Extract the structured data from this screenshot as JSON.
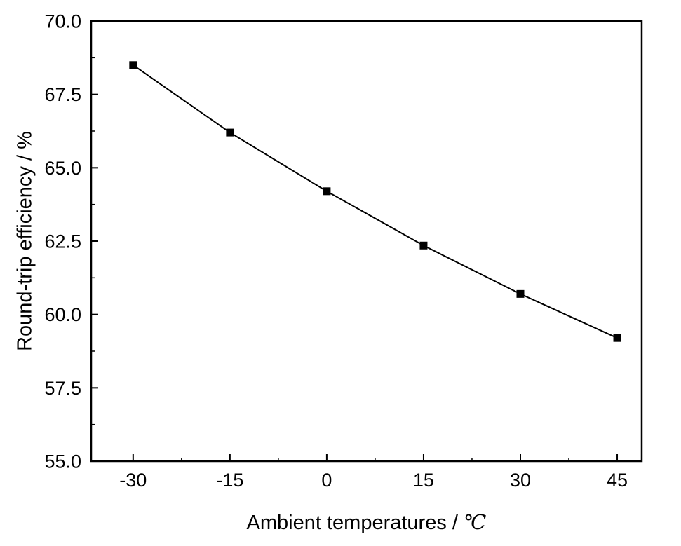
{
  "chart_data": {
    "type": "line",
    "title": "",
    "xlabel_prefix": "Ambient temperatures / ",
    "xlabel_unit": "℃",
    "ylabel": "Round-trip efficiency / %",
    "x": [
      -30,
      -15,
      0,
      15,
      30,
      45
    ],
    "series": [
      {
        "name": "Round-trip efficiency",
        "values": [
          68.5,
          66.2,
          64.2,
          62.35,
          60.7,
          59.2
        ]
      }
    ],
    "xlim": [
      -36.5,
      48.8
    ],
    "ylim": [
      55,
      70
    ],
    "xticks": [
      -30,
      -15,
      0,
      15,
      30,
      45
    ],
    "xtick_labels": [
      "-30",
      "-15",
      "0",
      "15",
      "30",
      "45"
    ],
    "yticks": [
      55,
      57.5,
      60,
      62.5,
      65,
      67.5,
      70
    ],
    "ytick_labels": [
      "55.0",
      "57.5",
      "60.0",
      "62.5",
      "65.0",
      "67.5",
      "70.0"
    ],
    "x_minor_step": 7.5,
    "y_minor_step": 1.25,
    "grid": false,
    "legend": "none",
    "line_color": "#000000",
    "marker": "square",
    "marker_size": 11,
    "marker_color": "#000000",
    "axis_color": "#000000",
    "background_color": "#ffffff"
  }
}
